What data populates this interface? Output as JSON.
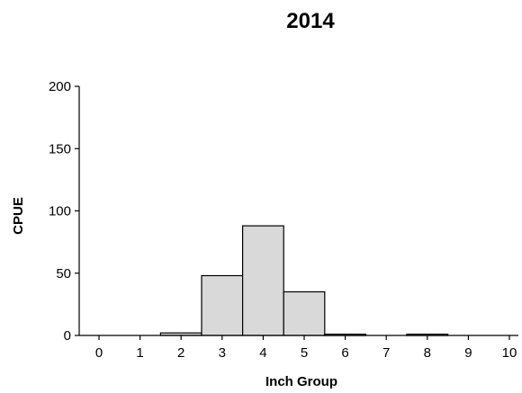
{
  "chart_data": {
    "type": "bar",
    "title": "2014",
    "xlabel": "Inch Group",
    "ylabel": "CPUE",
    "categories": [
      "0",
      "1",
      "2",
      "3",
      "4",
      "5",
      "6",
      "7",
      "8",
      "9",
      "10"
    ],
    "values": [
      0,
      0,
      2,
      48,
      88,
      35,
      1,
      0,
      1,
      0,
      0
    ],
    "ylim": [
      0,
      200
    ],
    "yticks": [
      "0",
      "50",
      "100",
      "150",
      "200"
    ],
    "grid": false,
    "legend": "none",
    "bar_color": "#d9d9d9",
    "edge_color": "#000000"
  }
}
